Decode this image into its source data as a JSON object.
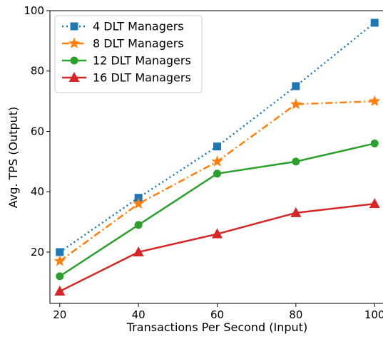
{
  "chart_data": {
    "type": "line",
    "title": "",
    "xlabel": "Transactions Per Second (Input)",
    "ylabel": "Avg. TPS (Output)",
    "x": [
      20,
      40,
      60,
      80,
      100
    ],
    "xlim": [
      17.5,
      102.5
    ],
    "ylim": [
      3,
      100
    ],
    "xticks": [
      20,
      40,
      60,
      80,
      100
    ],
    "yticks": [
      20,
      40,
      60,
      80,
      100
    ],
    "grid": false,
    "legend_position": "top-left",
    "series": [
      {
        "name": "4 DLT Managers",
        "values": [
          20,
          38,
          55,
          75,
          96
        ],
        "color": "#1f77b4",
        "linestyle": "dotted",
        "marker": "square"
      },
      {
        "name": "8 DLT Managers",
        "values": [
          17,
          36,
          50,
          69,
          70
        ],
        "color": "#ff7f0e",
        "linestyle": "dashdot",
        "marker": "star"
      },
      {
        "name": "12 DLT Managers",
        "values": [
          12,
          29,
          46,
          50,
          56
        ],
        "color": "#2ca02c",
        "linestyle": "solid",
        "marker": "circle"
      },
      {
        "name": "16 DLT Managers",
        "values": [
          7,
          20,
          26,
          33,
          36
        ],
        "color": "#d62728",
        "linestyle": "solid",
        "marker": "triangle"
      }
    ]
  }
}
